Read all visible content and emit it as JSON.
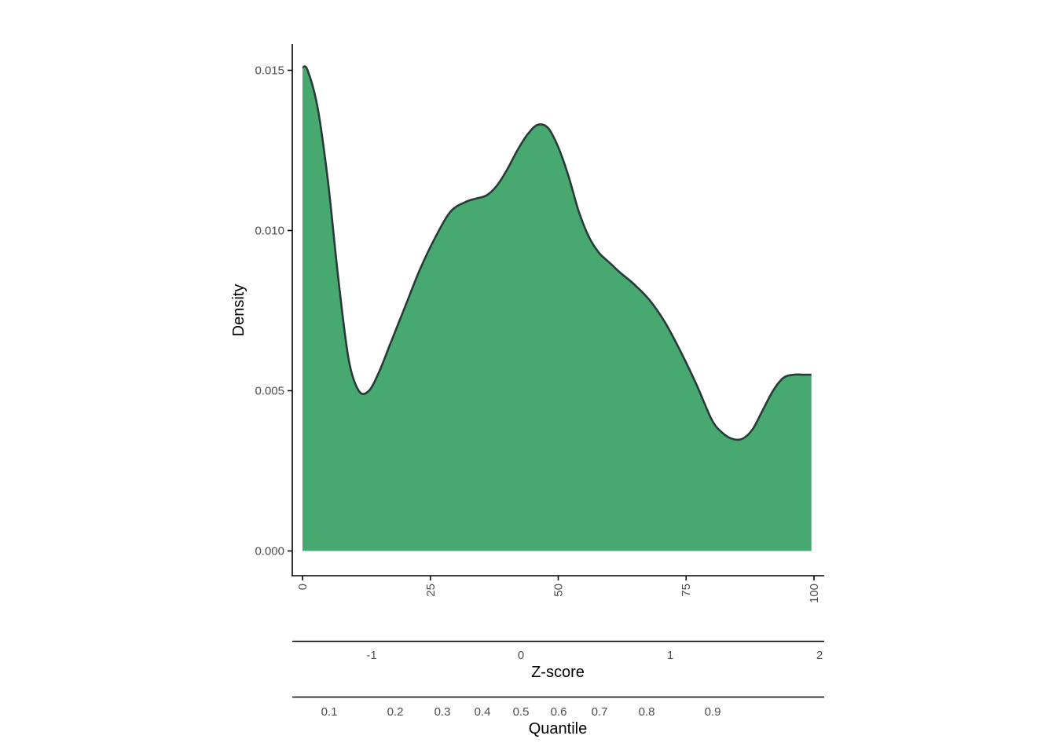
{
  "chart_data": {
    "type": "area",
    "title": "",
    "ylabel": "Density",
    "ylim": [
      0,
      0.0158
    ],
    "yticks": [
      "0.000",
      "0.005",
      "0.010",
      "0.015"
    ],
    "xlim": [
      -2,
      102
    ],
    "xticks": [
      "0",
      "25",
      "50",
      "75",
      "100"
    ],
    "secondary_axes": [
      {
        "label": "Z-score",
        "ticks": [
          {
            "label": "-1",
            "value": -1
          },
          {
            "label": "0",
            "value": 0
          },
          {
            "label": "1",
            "value": 1
          },
          {
            "label": "2",
            "value": 2
          }
        ]
      },
      {
        "label": "Quantile",
        "ticks": [
          {
            "label": "0.1",
            "value": 0.1
          },
          {
            "label": "0.2",
            "value": 0.2
          },
          {
            "label": "0.3",
            "value": 0.3
          },
          {
            "label": "0.4",
            "value": 0.4
          },
          {
            "label": "0.5",
            "value": 0.5
          },
          {
            "label": "0.6",
            "value": 0.6
          },
          {
            "label": "0.7",
            "value": 0.7
          },
          {
            "label": "0.8",
            "value": 0.8
          },
          {
            "label": "0.9",
            "value": 0.9
          }
        ]
      }
    ],
    "fill_color": "#47a970",
    "line_color": "#283a3a",
    "x": [
      0,
      1,
      3,
      5,
      7,
      9,
      11,
      13,
      15,
      17,
      20,
      23,
      26,
      29,
      32,
      34,
      36,
      38,
      40,
      42,
      44,
      46,
      48,
      50,
      52,
      54,
      56,
      58,
      60,
      62,
      65,
      68,
      71,
      74,
      77,
      80,
      82,
      84,
      86,
      88,
      90,
      92,
      94,
      96,
      98,
      99.5
    ],
    "y": [
      0.0151,
      0.015,
      0.0138,
      0.0115,
      0.0085,
      0.006,
      0.005,
      0.005,
      0.0056,
      0.0064,
      0.0076,
      0.0088,
      0.0098,
      0.0106,
      0.0109,
      0.011,
      0.0111,
      0.0114,
      0.0119,
      0.0125,
      0.013,
      0.0133,
      0.0132,
      0.0126,
      0.0117,
      0.0106,
      0.0098,
      0.0093,
      0.009,
      0.0087,
      0.0083,
      0.0078,
      0.0071,
      0.0062,
      0.0052,
      0.0041,
      0.0037,
      0.0035,
      0.0035,
      0.0038,
      0.0044,
      0.005,
      0.0054,
      0.0055,
      0.0055,
      0.0055
    ],
    "grid": false,
    "legend": "none"
  }
}
